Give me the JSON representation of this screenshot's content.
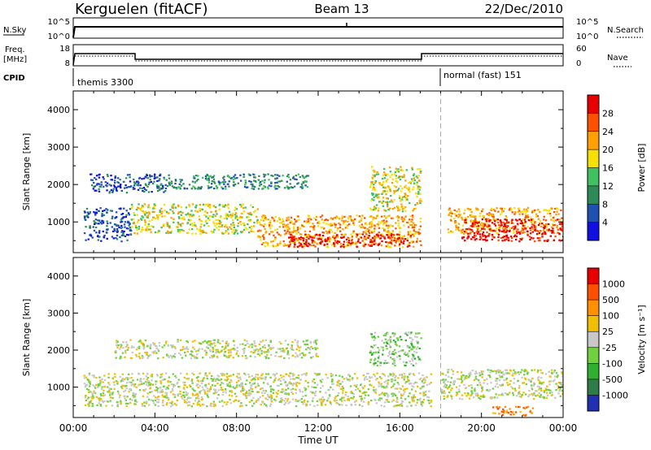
{
  "header": {
    "station": "Kerguelen (fitACF)",
    "beam": "Beam 13",
    "date": "22/Dec/2010"
  },
  "status_rows": {
    "nsky": {
      "label": "N.Sky",
      "right_label": "N.Search",
      "left_ticks": [
        "10^5",
        "10^0"
      ],
      "right_ticks": [
        "10^5",
        "10^0"
      ]
    },
    "freq": {
      "label_line1": "Freq.",
      "label_line2": "[MHz]",
      "right_label": "Nave",
      "left_ticks": [
        "18",
        "8"
      ],
      "right_ticks": [
        "60",
        "0"
      ]
    },
    "cpid": {
      "label": "CPID",
      "modes": [
        {
          "name": "themis 3300",
          "start_hour": 0
        },
        {
          "name": "normal (fast) 151",
          "start_hour": 18
        }
      ]
    }
  },
  "chart_data": [
    {
      "type": "heatmap",
      "panel": "power",
      "ylabel": "Slant Range [km]",
      "xlabel": "",
      "ylim": [
        180,
        4500
      ],
      "yticks": [
        1000,
        2000,
        3000,
        4000
      ],
      "xlim_hours": [
        0,
        24
      ],
      "mode_change_hour": 18,
      "colorbar": {
        "label": "Power [dB]",
        "ticks": [
          "4",
          "8",
          "12",
          "16",
          "20",
          "24",
          "28"
        ],
        "colors": [
          "#1010e0",
          "#2050b0",
          "#2e8b57",
          "#40c060",
          "#f5e000",
          "#ffa000",
          "#ff5000",
          "#e80000"
        ]
      },
      "echo_regions": [
        {
          "t0": 0.5,
          "t1": 2.8,
          "r0": 500,
          "r1": 1400,
          "level": 1
        },
        {
          "t0": 0.8,
          "t1": 4.5,
          "r0": 1800,
          "r1": 2300,
          "level": 1
        },
        {
          "t0": 2.8,
          "t1": 9.0,
          "r0": 700,
          "r1": 1500,
          "level": 4
        },
        {
          "t0": 4.0,
          "t1": 11.5,
          "r0": 1900,
          "r1": 2300,
          "level": 2
        },
        {
          "t0": 9.0,
          "t1": 17.0,
          "r0": 350,
          "r1": 1200,
          "level": 5
        },
        {
          "t0": 10.5,
          "t1": 16.5,
          "r0": 350,
          "r1": 700,
          "level": 7
        },
        {
          "t0": 14.5,
          "t1": 17.0,
          "r0": 1300,
          "r1": 2500,
          "level": 4
        },
        {
          "t0": 18.3,
          "t1": 24.0,
          "r0": 700,
          "r1": 1400,
          "level": 5
        },
        {
          "t0": 19.0,
          "t1": 24.0,
          "r0": 500,
          "r1": 1100,
          "level": 7
        }
      ]
    },
    {
      "type": "heatmap",
      "panel": "velocity",
      "ylabel": "Slant Range [km]",
      "xlabel": "Time UT",
      "ylim": [
        180,
        4500
      ],
      "yticks": [
        1000,
        2000,
        3000,
        4000
      ],
      "xticks": [
        "00:00",
        "04:00",
        "08:00",
        "12:00",
        "16:00",
        "20:00",
        "00:00"
      ],
      "xtick_hours": [
        0,
        4,
        8,
        12,
        16,
        20,
        24
      ],
      "xlim_hours": [
        0,
        24
      ],
      "mode_change_hour": 18,
      "colorbar": {
        "label": "Velocity [m s⁻¹]",
        "ticks": [
          "1000",
          "500",
          "100",
          "25",
          "-25",
          "-100",
          "-500",
          "-1000"
        ],
        "colors": [
          "#2030b0",
          "#2e7d46",
          "#30b030",
          "#70d040",
          "#c8c8c8",
          "#f0c000",
          "#ff9000",
          "#ff5000",
          "#e80000"
        ]
      },
      "echo_regions": [
        {
          "t0": 0.5,
          "t1": 17.5,
          "r0": 500,
          "r1": 1400,
          "level": 4
        },
        {
          "t0": 2.0,
          "t1": 12.0,
          "r0": 1800,
          "r1": 2300,
          "level": 4
        },
        {
          "t0": 14.5,
          "t1": 17.0,
          "r0": 1600,
          "r1": 2500,
          "level": 3
        },
        {
          "t0": 18.0,
          "t1": 24.0,
          "r0": 700,
          "r1": 1500,
          "level": 4
        },
        {
          "t0": 20.5,
          "t1": 22.5,
          "r0": 250,
          "r1": 500,
          "level": 6
        }
      ]
    }
  ]
}
